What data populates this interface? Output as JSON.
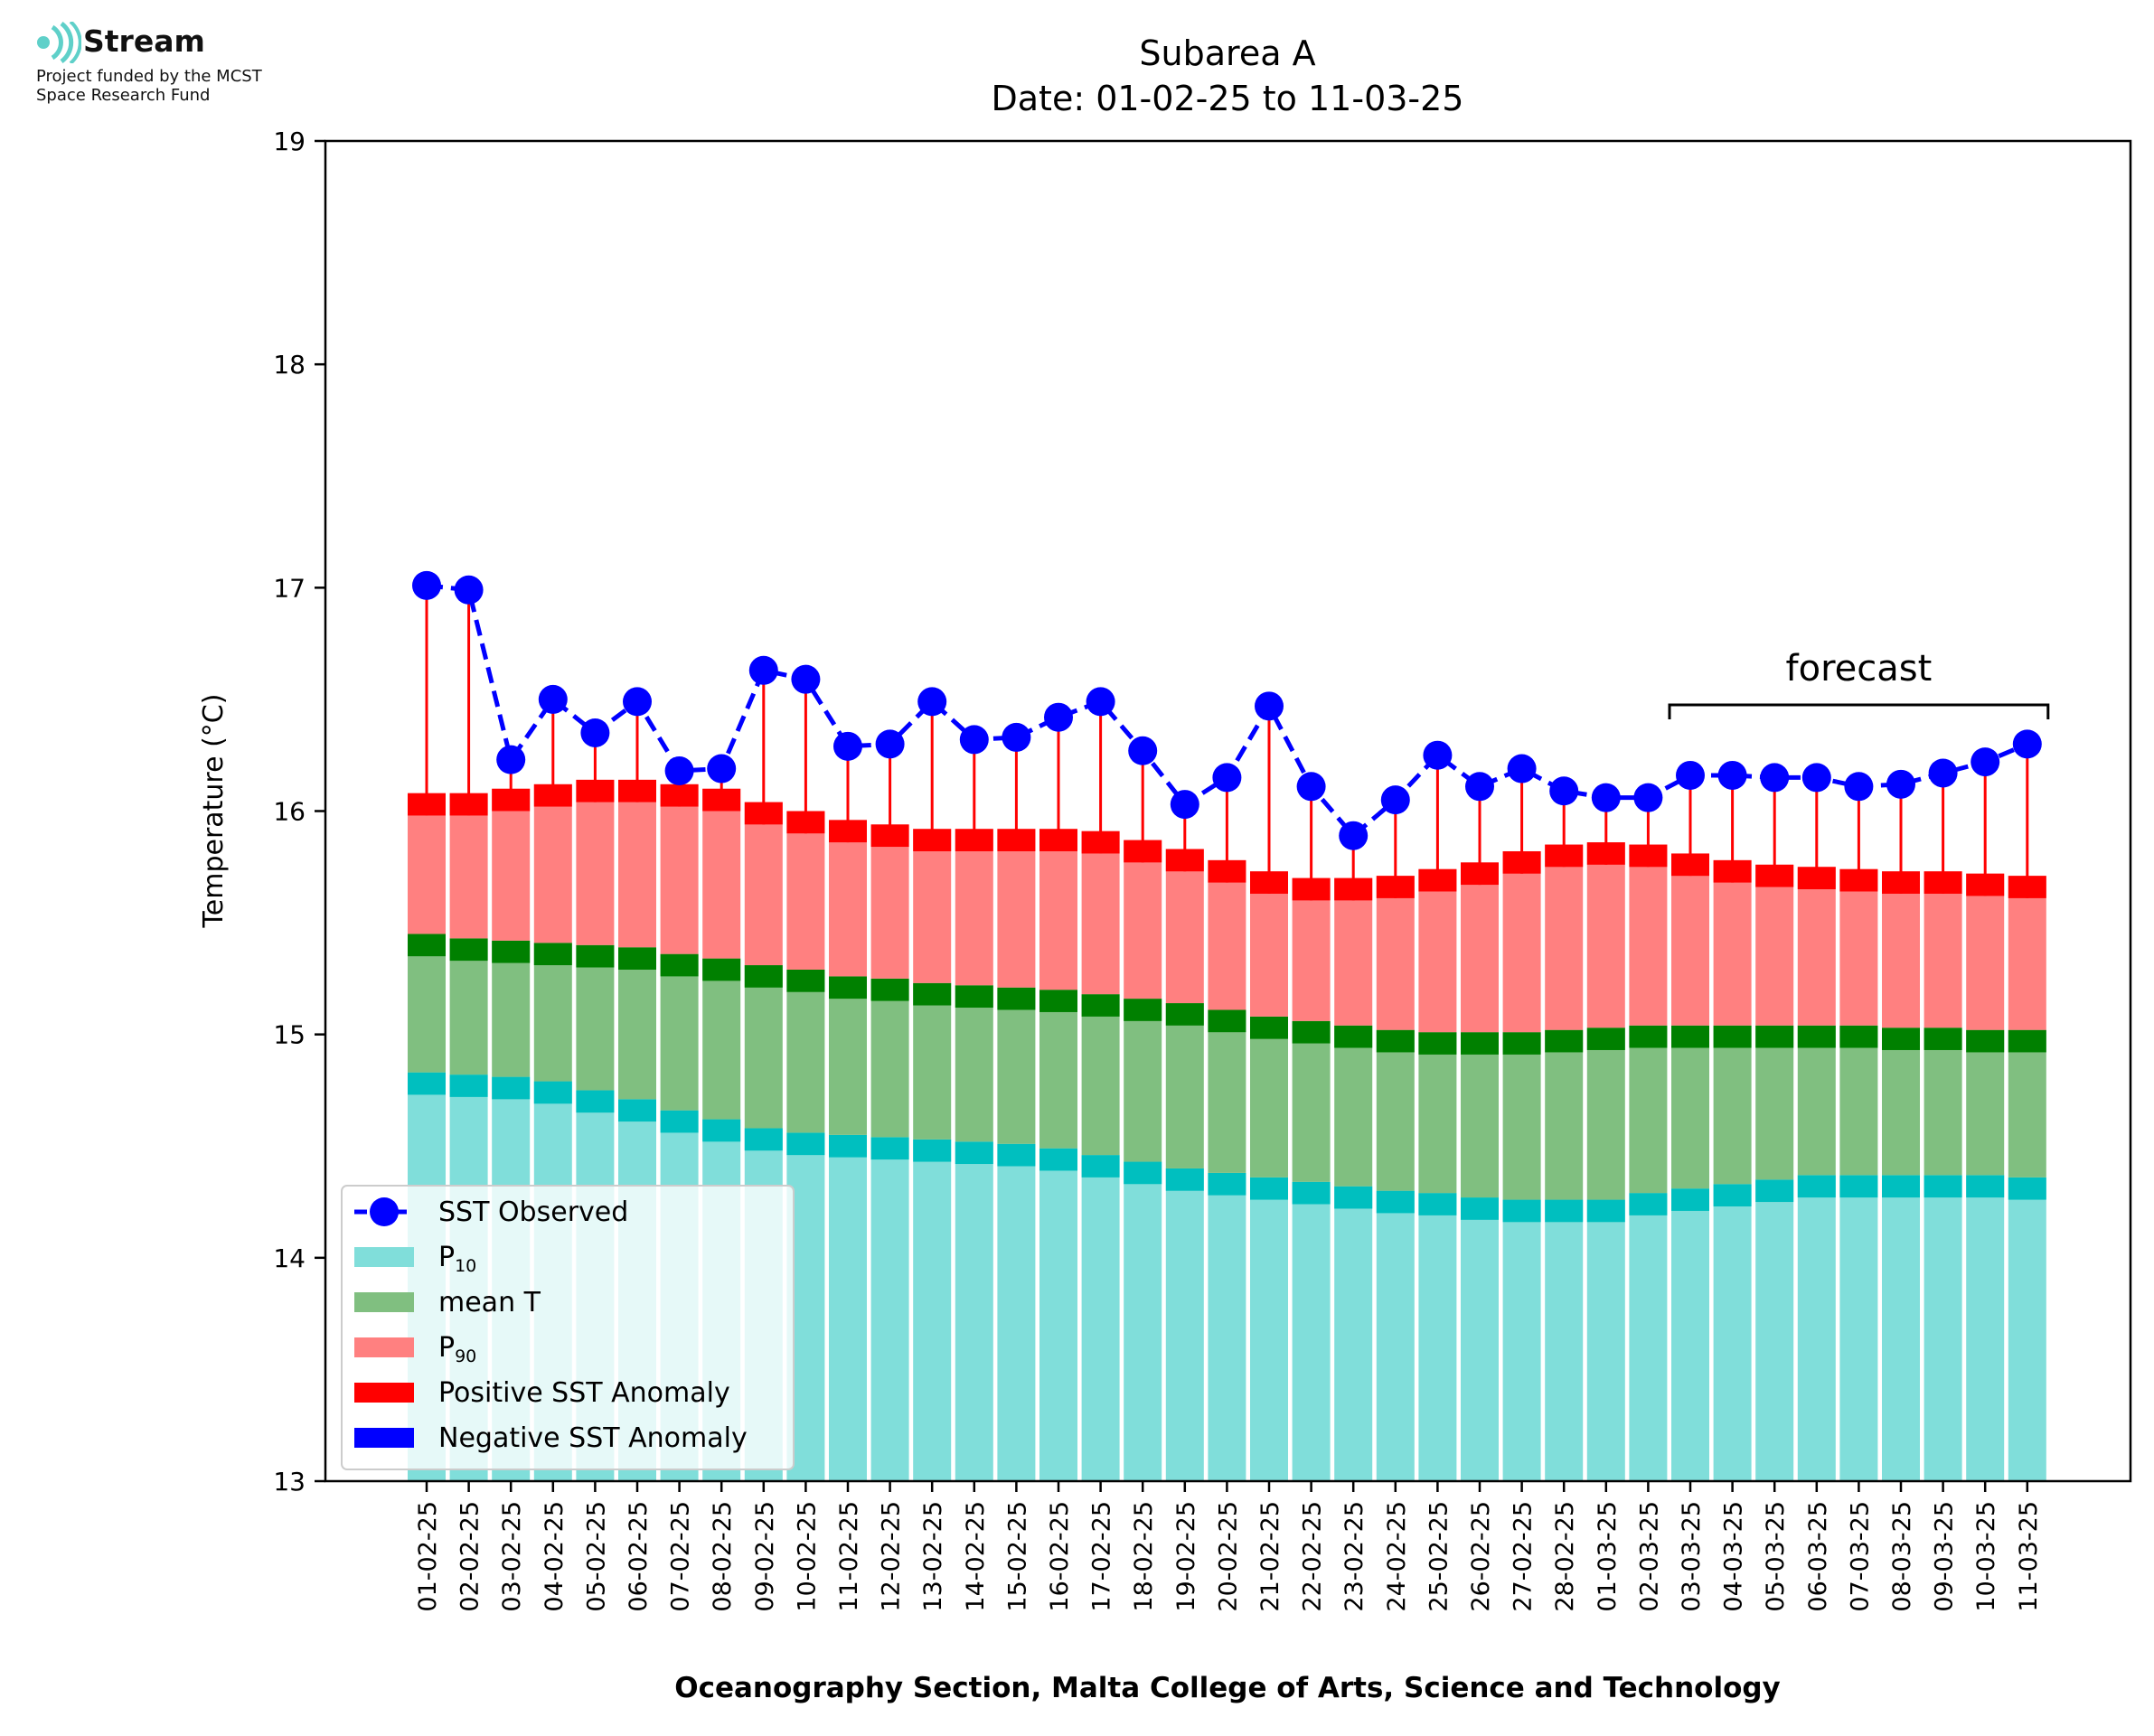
{
  "branding": {
    "name": "Stream",
    "line1": "Project funded by the MCST",
    "line2": "Space Research Fund"
  },
  "chart_data": {
    "type": "bar",
    "title": "Subarea A",
    "subtitle": "Date: 01-02-25 to 11-03-25",
    "xlabel": "Oceanography Section, Malta College of Arts, Science and Technology",
    "ylabel": "Temperature (°C)",
    "ylim": [
      13,
      19
    ],
    "yticks": [
      13,
      14,
      15,
      16,
      17,
      18,
      19
    ],
    "grid": false,
    "legend_position": "lower-left",
    "annotation": "forecast",
    "forecast_range": [
      "03-03-25",
      "11-03-25"
    ],
    "categories": [
      "01-02-25",
      "02-02-25",
      "03-02-25",
      "04-02-25",
      "05-02-25",
      "06-02-25",
      "07-02-25",
      "08-02-25",
      "09-02-25",
      "10-02-25",
      "11-02-25",
      "12-02-25",
      "13-02-25",
      "14-02-25",
      "15-02-25",
      "16-02-25",
      "17-02-25",
      "18-02-25",
      "19-02-25",
      "20-02-25",
      "21-02-25",
      "22-02-25",
      "23-02-25",
      "24-02-25",
      "25-02-25",
      "26-02-25",
      "27-02-25",
      "28-02-25",
      "01-03-25",
      "02-03-25",
      "03-03-25",
      "04-03-25",
      "05-03-25",
      "06-03-25",
      "07-03-25",
      "08-03-25",
      "09-03-25",
      "10-03-25",
      "11-03-25"
    ],
    "series": [
      {
        "name": "P10",
        "color": "#80deda",
        "edge_color": "#00bfbf",
        "values": [
          14.83,
          14.82,
          14.81,
          14.79,
          14.75,
          14.71,
          14.66,
          14.62,
          14.58,
          14.56,
          14.55,
          14.54,
          14.53,
          14.52,
          14.51,
          14.49,
          14.46,
          14.43,
          14.4,
          14.38,
          14.36,
          14.34,
          14.32,
          14.3,
          14.29,
          14.27,
          14.26,
          14.26,
          14.26,
          14.29,
          14.31,
          14.33,
          14.35,
          14.37,
          14.37,
          14.37,
          14.37,
          14.37,
          14.36
        ]
      },
      {
        "name": "mean T",
        "color": "#80bf80",
        "edge_color": "#008000",
        "values": [
          15.45,
          15.43,
          15.42,
          15.41,
          15.4,
          15.39,
          15.36,
          15.34,
          15.31,
          15.29,
          15.26,
          15.25,
          15.23,
          15.22,
          15.21,
          15.2,
          15.18,
          15.16,
          15.14,
          15.11,
          15.08,
          15.06,
          15.04,
          15.02,
          15.01,
          15.01,
          15.01,
          15.02,
          15.03,
          15.04,
          15.04,
          15.04,
          15.04,
          15.04,
          15.04,
          15.03,
          15.03,
          15.02,
          15.02
        ]
      },
      {
        "name": "P90",
        "color": "#ff8080",
        "edge_color": "#ff0000",
        "values": [
          16.08,
          16.08,
          16.1,
          16.12,
          16.14,
          16.14,
          16.12,
          16.1,
          16.04,
          16.0,
          15.96,
          15.94,
          15.92,
          15.92,
          15.92,
          15.92,
          15.91,
          15.87,
          15.83,
          15.78,
          15.73,
          15.7,
          15.7,
          15.71,
          15.74,
          15.77,
          15.82,
          15.85,
          15.86,
          15.85,
          15.81,
          15.78,
          15.76,
          15.75,
          15.74,
          15.73,
          15.73,
          15.72,
          15.71
        ]
      },
      {
        "name": "SST Observed",
        "color": "#0000ff",
        "values": [
          17.01,
          16.99,
          16.23,
          16.5,
          16.35,
          16.49,
          16.18,
          16.19,
          16.63,
          16.59,
          16.29,
          16.3,
          16.49,
          16.32,
          16.33,
          16.42,
          16.49,
          16.27,
          16.03,
          16.15,
          16.47,
          16.11,
          15.89,
          16.05,
          16.25,
          16.11,
          16.19,
          16.09,
          16.06,
          16.06,
          16.16,
          16.16,
          16.15,
          16.15,
          16.11,
          16.12,
          16.17,
          16.22,
          16.3
        ]
      }
    ],
    "legend": [
      {
        "label": "SST Observed",
        "kind": "line",
        "color": "#0000ff"
      },
      {
        "label": "P",
        "sub": "10",
        "kind": "patch",
        "color": "#80deda"
      },
      {
        "label": "mean T",
        "kind": "patch",
        "color": "#80bf80"
      },
      {
        "label": "P",
        "sub": "90",
        "kind": "patch",
        "color": "#ff8080"
      },
      {
        "label": "Positive SST Anomaly",
        "kind": "patch",
        "color": "#ff0000"
      },
      {
        "label": "Negative SST Anomaly",
        "kind": "patch",
        "color": "#0000ff"
      }
    ]
  }
}
